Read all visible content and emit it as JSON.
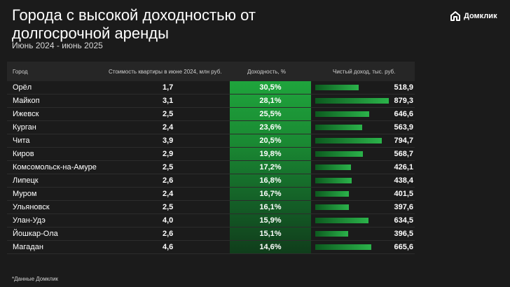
{
  "header": {
    "title": "Города с высокой доходностью от долгосрочной аренды",
    "subtitle": "Июнь 2024 - июнь 2025",
    "logo_text": "Домклик"
  },
  "colors": {
    "background": "#1b1b1b",
    "accent_green": "#2bb34a"
  },
  "chart_data": {
    "type": "table",
    "columns": [
      "Город",
      "Стоимость квартиры в июне 2024, млн руб.",
      "Доходность, %",
      "Чистый доход, тыс. руб."
    ],
    "rows": [
      {
        "city": "Орёл",
        "cost": "1,7",
        "yield": "30,5%",
        "income": "518,9",
        "income_value": 518.9
      },
      {
        "city": "Майкоп",
        "cost": "3,1",
        "yield": "28,1%",
        "income": "879,3",
        "income_value": 879.3
      },
      {
        "city": "Ижевск",
        "cost": "2,5",
        "yield": "25,5%",
        "income": "646,6",
        "income_value": 646.6
      },
      {
        "city": "Курган",
        "cost": "2,4",
        "yield": "23,6%",
        "income": "563,9",
        "income_value": 563.9
      },
      {
        "city": "Чита",
        "cost": "3,9",
        "yield": "20,5%",
        "income": "794,7",
        "income_value": 794.7
      },
      {
        "city": "Киров",
        "cost": "2,9",
        "yield": "19,8%",
        "income": "568,7",
        "income_value": 568.7
      },
      {
        "city": "Комсомольск-на-Амуре",
        "cost": "2,5",
        "yield": "17,2%",
        "income": "426,1",
        "income_value": 426.1
      },
      {
        "city": "Липецк",
        "cost": "2,6",
        "yield": "16,8%",
        "income": "438,4",
        "income_value": 438.4
      },
      {
        "city": "Муром",
        "cost": "2,4",
        "yield": "16,7%",
        "income": "401,5",
        "income_value": 401.5
      },
      {
        "city": "Ульяновск",
        "cost": "2,5",
        "yield": "16,1%",
        "income": "397,6",
        "income_value": 397.6
      },
      {
        "city": "Улан-Удэ",
        "cost": "4,0",
        "yield": "15,9%",
        "income": "634,5",
        "income_value": 634.5
      },
      {
        "city": "Йошкар-Ола",
        "cost": "2,6",
        "yield": "15,1%",
        "income": "396,5",
        "income_value": 396.5
      },
      {
        "city": "Магадан",
        "cost": "4,6",
        "yield": "14,6%",
        "income": "665,6",
        "income_value": 665.6
      }
    ]
  },
  "footnote": "*Данные Домклик"
}
